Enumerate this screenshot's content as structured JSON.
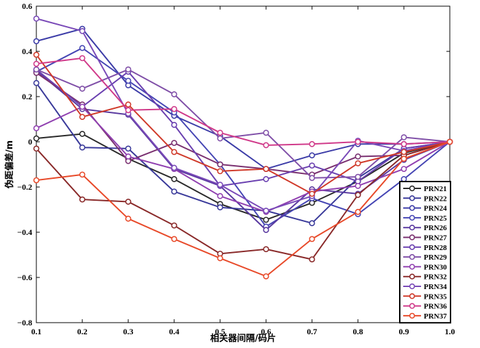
{
  "chart_data": {
    "type": "line",
    "xlabel": "相关器间隔/码片",
    "ylabel": "伪距偏差/m",
    "xlim": [
      0.1,
      1.0
    ],
    "ylim": [
      -0.8,
      0.6
    ],
    "x": [
      0.1,
      0.2,
      0.3,
      0.4,
      0.5,
      0.6,
      0.7,
      0.8,
      0.9,
      1.0
    ],
    "x_ticks": [
      0.1,
      0.2,
      0.3,
      0.4,
      0.5,
      0.6,
      0.7,
      0.8,
      0.9,
      1.0
    ],
    "x_tick_labels": [
      "0.1",
      "0.2",
      "0.3",
      "0.4",
      "0.5",
      "0.6",
      "0.7",
      "0.8",
      "0.9",
      "1.0"
    ],
    "y_ticks": [
      -0.8,
      -0.6,
      -0.4,
      -0.2,
      0,
      0.2,
      0.4,
      0.6
    ],
    "y_tick_labels": [
      "−0.8",
      "−0.6",
      "−0.4",
      "−0.2",
      "0",
      "0.2",
      "0.4",
      "0.6"
    ],
    "grid": false,
    "legend_position": "bottom-right",
    "series": [
      {
        "name": "PRN21",
        "color": "#2a2a2a",
        "values": [
          0.015,
          0.035,
          -0.075,
          -0.165,
          -0.275,
          -0.345,
          -0.27,
          -0.175,
          -0.05,
          0
        ]
      },
      {
        "name": "PRN22",
        "color": "#3a3a9a",
        "values": [
          0.26,
          -0.025,
          -0.03,
          -0.22,
          -0.29,
          -0.305,
          -0.36,
          -0.16,
          -0.03,
          0
        ]
      },
      {
        "name": "PRN24",
        "color": "#3d3da8",
        "values": [
          0.445,
          0.5,
          0.25,
          0.115,
          0.025,
          -0.12,
          -0.06,
          -0.01,
          -0.01,
          0
        ]
      },
      {
        "name": "PRN25",
        "color": "#4646b4",
        "values": [
          0.31,
          0.415,
          0.27,
          0.13,
          -0.1,
          -0.375,
          -0.25,
          -0.32,
          -0.165,
          0
        ]
      },
      {
        "name": "PRN26",
        "color": "#5a3aa0",
        "values": [
          0.315,
          0.145,
          0.12,
          -0.12,
          -0.195,
          -0.39,
          -0.21,
          -0.23,
          -0.08,
          0
        ]
      },
      {
        "name": "PRN27",
        "color": "#7a3070",
        "values": [
          0.305,
          0.165,
          -0.085,
          -0.005,
          -0.1,
          -0.12,
          -0.145,
          -0.065,
          -0.06,
          0
        ]
      },
      {
        "name": "PRN28",
        "color": "#6a40b0",
        "values": [
          0.32,
          0.155,
          0.31,
          0.075,
          -0.195,
          -0.165,
          -0.105,
          -0.175,
          -0.03,
          0
        ]
      },
      {
        "name": "PRN29",
        "color": "#8050a8",
        "values": [
          0.32,
          0.235,
          0.32,
          0.21,
          0.015,
          0.04,
          -0.16,
          -0.155,
          0.02,
          0
        ]
      },
      {
        "name": "PRN30",
        "color": "#9040b0",
        "values": [
          0.06,
          0.155,
          -0.065,
          -0.12,
          -0.24,
          -0.31,
          -0.22,
          -0.195,
          -0.12,
          0
        ]
      },
      {
        "name": "PRN32",
        "color": "#8a2a2a",
        "values": [
          -0.03,
          -0.255,
          -0.265,
          -0.37,
          -0.495,
          -0.475,
          -0.52,
          -0.235,
          -0.06,
          0
        ]
      },
      {
        "name": "PRN34",
        "color": "#7a4ab8",
        "values": [
          0.545,
          0.49,
          0.125,
          -0.115,
          -0.19,
          -0.305,
          -0.24,
          0.005,
          -0.04,
          0
        ]
      },
      {
        "name": "PRN35",
        "color": "#d03a2a",
        "values": [
          0.385,
          0.11,
          0.165,
          -0.045,
          -0.13,
          -0.12,
          -0.23,
          -0.095,
          -0.045,
          0
        ]
      },
      {
        "name": "PRN36",
        "color": "#d03a8a",
        "values": [
          0.345,
          0.37,
          0.14,
          0.145,
          0.04,
          -0.015,
          -0.01,
          0,
          -0.01,
          0
        ]
      },
      {
        "name": "PRN37",
        "color": "#e84a2a",
        "values": [
          -0.17,
          -0.145,
          -0.34,
          -0.43,
          -0.515,
          -0.595,
          -0.43,
          -0.31,
          -0.075,
          0
        ]
      }
    ]
  }
}
